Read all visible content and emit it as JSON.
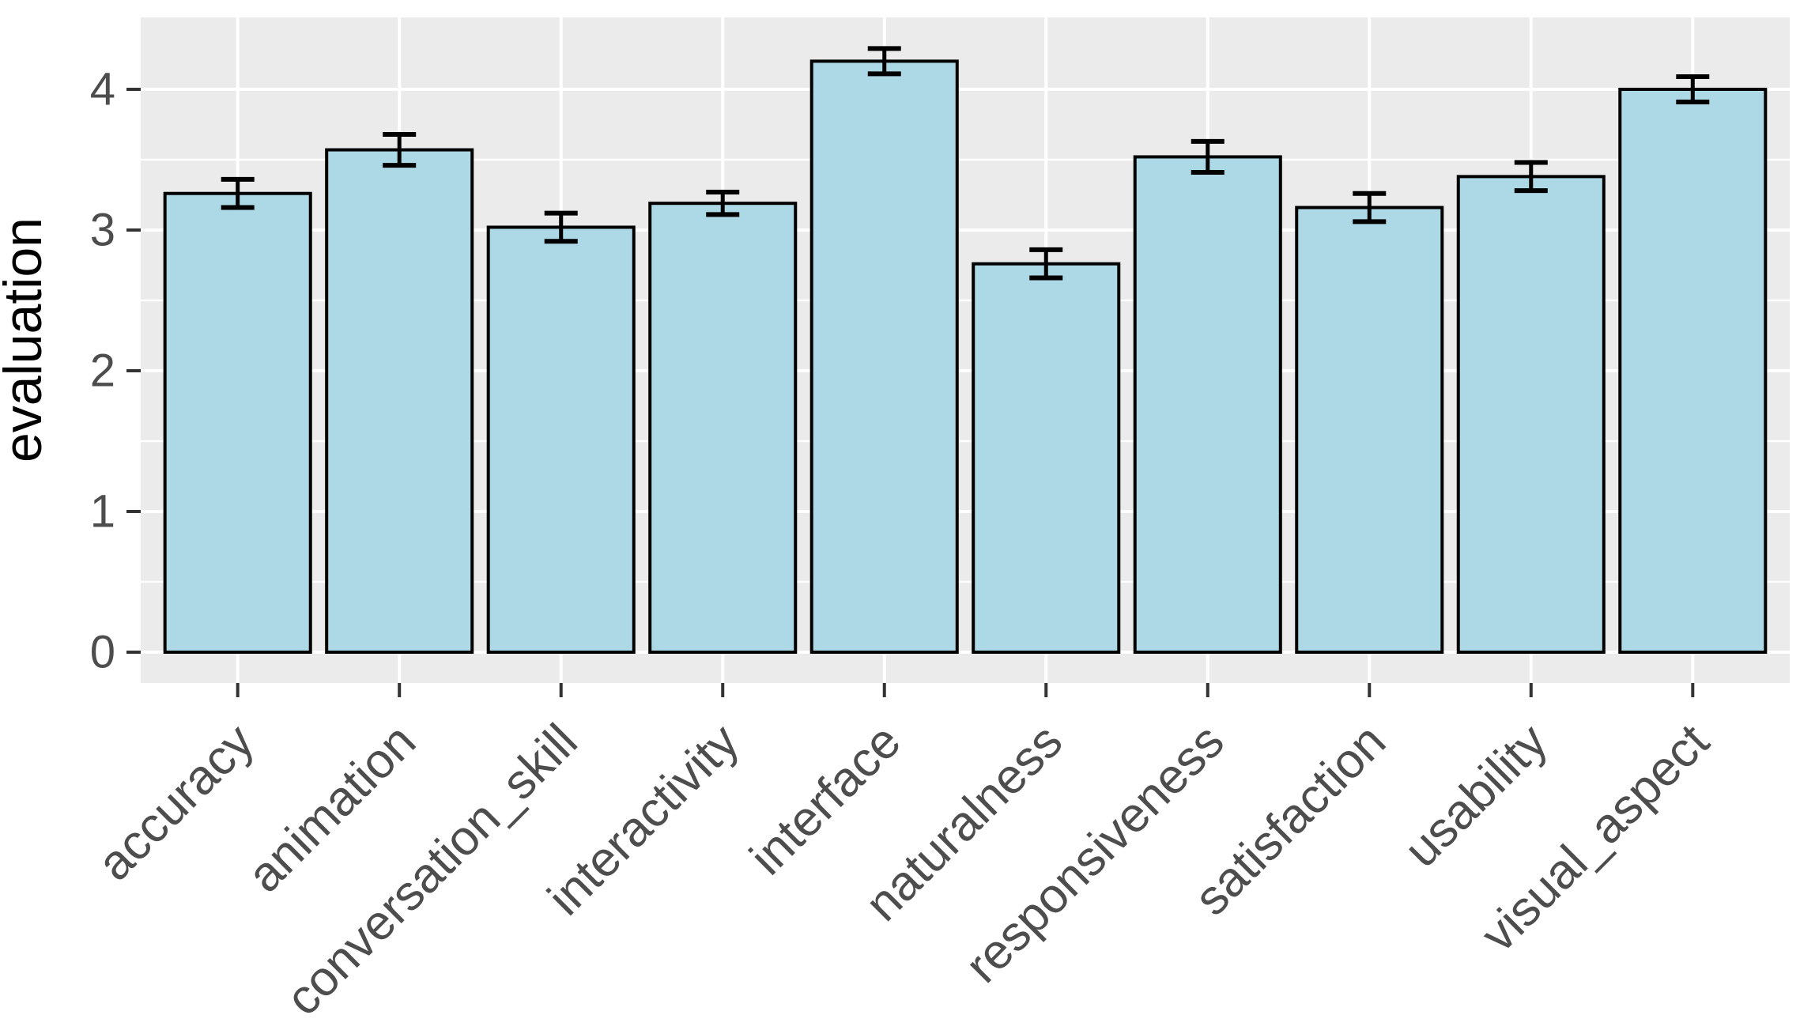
{
  "chart_data": {
    "type": "bar",
    "title": "",
    "xlabel": "",
    "ylabel": "evaluation",
    "categories": [
      "accuracy",
      "animation",
      "conversation_skill",
      "interactivity",
      "interface",
      "naturalness",
      "responsiveness",
      "satisfaction",
      "usability",
      "visual_aspect"
    ],
    "values": [
      3.26,
      3.57,
      3.02,
      3.19,
      4.2,
      2.76,
      3.52,
      3.16,
      3.38,
      4.0
    ],
    "errors": [
      0.1,
      0.11,
      0.1,
      0.08,
      0.09,
      0.1,
      0.11,
      0.1,
      0.1,
      0.09
    ],
    "error_bar_style": "mean ± se whiskers with caps",
    "y_ticks": [
      0,
      1,
      2,
      3,
      4
    ],
    "y_minor_ticks": [
      0.5,
      1.5,
      2.5,
      3.5
    ],
    "ylim": [
      0,
      4.5
    ],
    "grid": "on",
    "legend": "none",
    "x_label_rotation_deg": 45,
    "colors": {
      "bar_fill": "#ADD8E6",
      "bar_stroke": "#000000",
      "panel_background": "#EBEBEB",
      "gridline": "#FFFFFF",
      "tick_mark": "#333333",
      "axis_text": "#4D4D4D",
      "axis_title": "#000000",
      "page_background": "#FFFFFF"
    }
  }
}
